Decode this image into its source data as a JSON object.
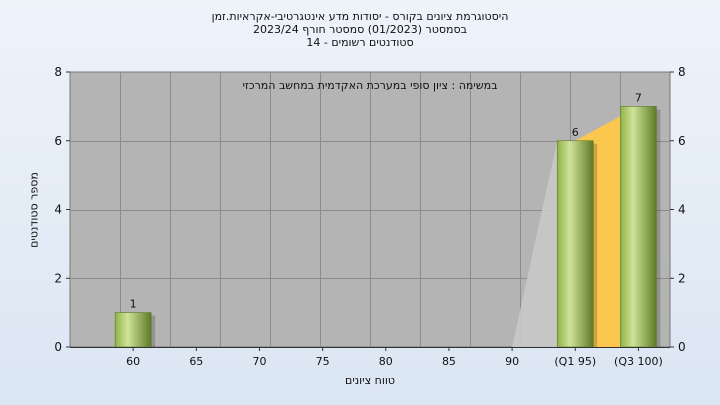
{
  "header": {
    "title_line1": "היסטוגרמת ציונים בקורס - יסודות מדע אינטגרטיבי-אקראיות.זמן",
    "title_line2": "בסמסטר (01/2023) סמסטר חורף 2023/24",
    "title_line3": "סטודנטים רשומים - 14"
  },
  "chart_data": {
    "type": "bar",
    "categories": [
      "60",
      "65",
      "70",
      "75",
      "80",
      "85",
      "90",
      "(Q1 95)",
      "(Q3 100)"
    ],
    "values": [
      1,
      0,
      0,
      0,
      0,
      0,
      0,
      6,
      7
    ],
    "data_labels": [
      "1",
      "",
      "",
      "",
      "",
      "",
      "",
      "6",
      "7"
    ],
    "annotation": "במשימה : ציון סופי במערכת האקדמית במחשב המרכזי",
    "xlabel": "טווח ציונים",
    "ylabel": "מספר סטודנטים",
    "ylim": [
      0,
      8
    ],
    "yticks": [
      0,
      2,
      4,
      6,
      8
    ],
    "grid": true,
    "colors": {
      "plot_bg": "#b4b4b4",
      "bar_light": "#cfe39a",
      "bar_mid": "#8fb34a",
      "bar_dark": "#5d7a25",
      "quartile_band": "#ffc84a",
      "shadow_band": "#c8c8c8"
    }
  }
}
